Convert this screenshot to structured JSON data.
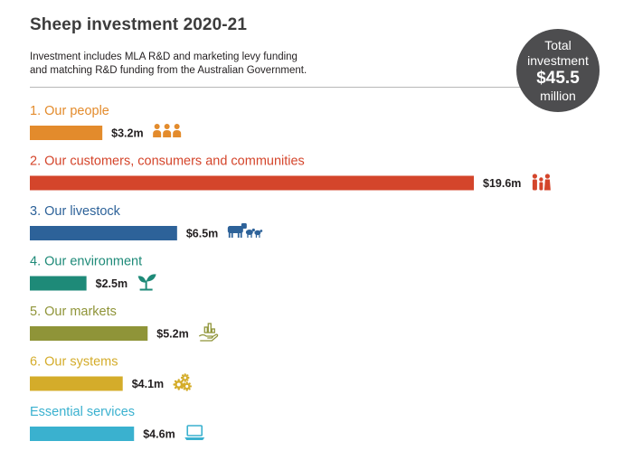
{
  "title": "Sheep investment 2020-21",
  "subtitle_lines": [
    "Investment includes MLA R&D and marketing levy funding",
    "and matching R&D funding from the Australian Government."
  ],
  "total": {
    "line1": "Total",
    "line2": "investment",
    "amount": "$45.5",
    "unit": "million"
  },
  "chart_data": {
    "type": "bar",
    "orientation": "horizontal",
    "unit": "$m",
    "categories": [
      "1. Our people",
      "2. Our customers, consumers and communities",
      "3. Our livestock",
      "4. Our environment",
      "5. Our markets",
      "6. Our systems",
      "Essential services"
    ],
    "values": [
      3.2,
      19.6,
      6.5,
      2.5,
      5.2,
      4.1,
      4.6
    ],
    "value_labels": [
      "$3.2m",
      "$19.6m",
      "$6.5m",
      "$2.5m",
      "$5.2m",
      "$4.1m",
      "$4.6m"
    ],
    "colors": [
      "#e38b2c",
      "#d4452b",
      "#2d6299",
      "#1e8a78",
      "#8f9438",
      "#d4ac2a",
      "#3ab1cf"
    ],
    "icons": [
      "people-icon",
      "family-icon",
      "livestock-icon",
      "seedling-icon",
      "hand-chart-icon",
      "gears-icon",
      "laptop-icon"
    ],
    "xlim": [
      0,
      19.6
    ],
    "legend": "none",
    "grid": false
  }
}
